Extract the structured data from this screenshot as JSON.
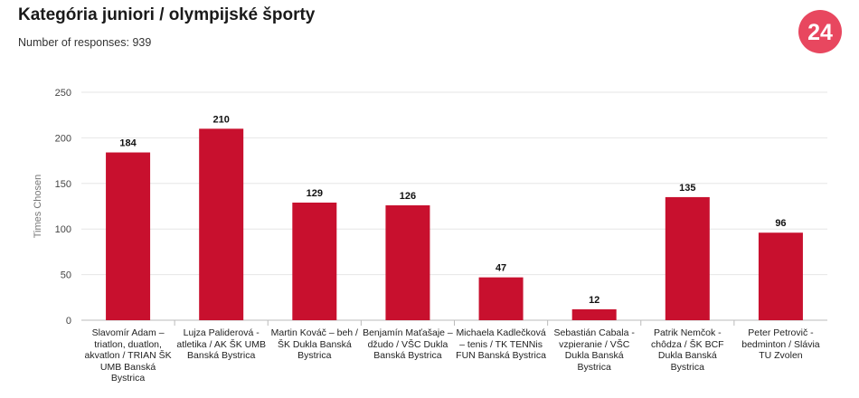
{
  "header": {
    "title": "Kategória juniori / olympijské športy",
    "subtitle": "Number of responses: 939",
    "logo_text": "24"
  },
  "colors": {
    "bar": "#c8102e",
    "logo": "#e8475f",
    "grid": "#e6e6e6"
  },
  "chart_data": {
    "type": "bar",
    "title": "",
    "ylabel": "Times Chosen",
    "xlabel": "",
    "ylim": [
      0,
      250
    ],
    "yticks": [
      0,
      50,
      100,
      150,
      200,
      250
    ],
    "grid": true,
    "categories": [
      "Slavomír Adam – triatlon, duatlon, akvatlon / TRIAN ŠK UMB Banská Bystrica",
      "Lujza Paliderová - atletika / AK ŠK UMB Banská Bystrica",
      "Martin Kováč – beh / ŠK Dukla Banská Bystrica",
      "Benjamín Maťašaje – džudo / VŠC Dukla Banská Bystrica",
      "Michaela Kadlečková – tenis / TK TENNis FUN Banská Bystrica",
      "Sebastián Cabala - vzpieranie / VŠC Dukla Banská Bystrica",
      "Patrik Nemčok - chôdza / ŠK BCF Dukla Banská Bystrica",
      "Peter Petrovič - bedminton / Slávia TU Zvolen"
    ],
    "values": [
      184,
      210,
      129,
      126,
      47,
      12,
      135,
      96
    ]
  }
}
